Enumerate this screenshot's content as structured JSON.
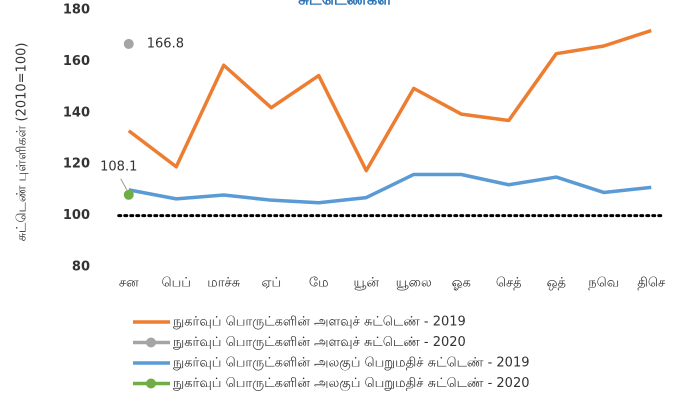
{
  "chart_data": {
    "type": "line",
    "title": "சுட்டெண்கள்",
    "y_label": "சுட்டெண் புள்ளிகள் (2010=100)",
    "categories": [
      "சன",
      "பெப்",
      "மாச்சு",
      "ஏப்",
      "மே",
      "யூன்",
      "யூலை",
      "ஓக",
      "செத்",
      "ஒத்",
      "நவெ",
      "திசெ"
    ],
    "series": [
      {
        "name": "நுகர்வுப் பொருட்களின் அளவுச் சுட்டெண் - 2019",
        "color": "#ed7d31",
        "marker": false,
        "values": [
          133,
          119,
          158.5,
          142,
          154.5,
          117.5,
          149.5,
          139.5,
          137,
          163,
          166,
          172
        ]
      },
      {
        "name": "நுகர்வுப் பொருட்களின் அளவுச் சுட்டெண் - 2020",
        "color": "#a5a5a5",
        "marker": true,
        "data_labels": true,
        "values": [
          166.8,
          null,
          null,
          null,
          null,
          null,
          null,
          null,
          null,
          null,
          null,
          null
        ]
      },
      {
        "name": "நுகர்வுப் பொருட்களின் அலகுப் பெறுமதிச் சுட்டெண் - 2019",
        "color": "#5b9bd5",
        "marker": false,
        "values": [
          110,
          106.5,
          108,
          106,
          105,
          107,
          116,
          116,
          112,
          115,
          109,
          111
        ]
      },
      {
        "name": "நுகர்வுப் பொருட்களின் அலகுப் பெறுமதிச் சுட்டெண் - 2020",
        "color": "#70ad47",
        "marker": true,
        "data_labels": true,
        "values": [
          108.1,
          null,
          null,
          null,
          null,
          null,
          null,
          null,
          null,
          null,
          null,
          null
        ]
      }
    ],
    "reference_line": {
      "value": 100,
      "color": "#000000"
    },
    "ylim": [
      80,
      180
    ],
    "yticks": [
      80,
      100,
      120,
      140,
      160,
      180
    ],
    "grid": false
  }
}
